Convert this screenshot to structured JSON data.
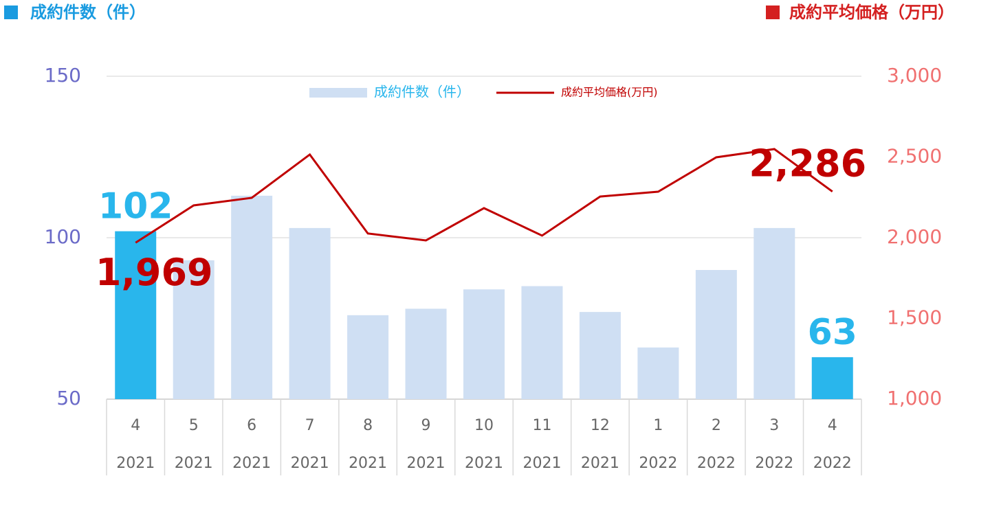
{
  "chart_data": {
    "type": "bar-line",
    "title": "成約件数（件）",
    "title_right": "成約平均価格（万円）",
    "categories": [
      "4",
      "5",
      "6",
      "7",
      "8",
      "9",
      "10",
      "11",
      "12",
      "1",
      "2",
      "3",
      "4"
    ],
    "years": [
      "2021",
      "2021",
      "2021",
      "2021",
      "2021",
      "2021",
      "2021",
      "2021",
      "2021",
      "2022",
      "2022",
      "2022",
      "2022"
    ],
    "series": [
      {
        "name": "成約件数（件）",
        "type": "bar",
        "color": "#cfdff3",
        "highlight_color": "#29b6ec",
        "values": [
          102,
          93,
          113,
          103,
          76,
          78,
          84,
          85,
          77,
          66,
          90,
          103,
          63
        ],
        "value_labels": [
          "102",
          null,
          null,
          null,
          null,
          null,
          null,
          null,
          null,
          null,
          null,
          null,
          "63"
        ]
      },
      {
        "name": "成約平均価格(万円)",
        "type": "line",
        "axis": "y2",
        "color": "#c00000",
        "values": [
          1969,
          2200,
          2247,
          2515,
          2026,
          1983,
          2183,
          2013,
          2255,
          2285,
          2498,
          2549,
          2286
        ],
        "value_labels": [
          "1,969",
          null,
          null,
          null,
          null,
          null,
          null,
          null,
          null,
          null,
          null,
          null,
          "2,286"
        ]
      }
    ],
    "ylim": [
      50,
      150
    ],
    "yticks": [
      50,
      100,
      150
    ],
    "y2lim": [
      1000,
      3000
    ],
    "y2ticks": [
      {
        "value": 1000,
        "label": "1,000"
      },
      {
        "value": 1500,
        "label": "1,500"
      },
      {
        "value": 2000,
        "label": "2,000"
      },
      {
        "value": 2500,
        "label": "2,500"
      },
      {
        "value": 3000,
        "label": "3,000"
      }
    ],
    "grid": true
  }
}
